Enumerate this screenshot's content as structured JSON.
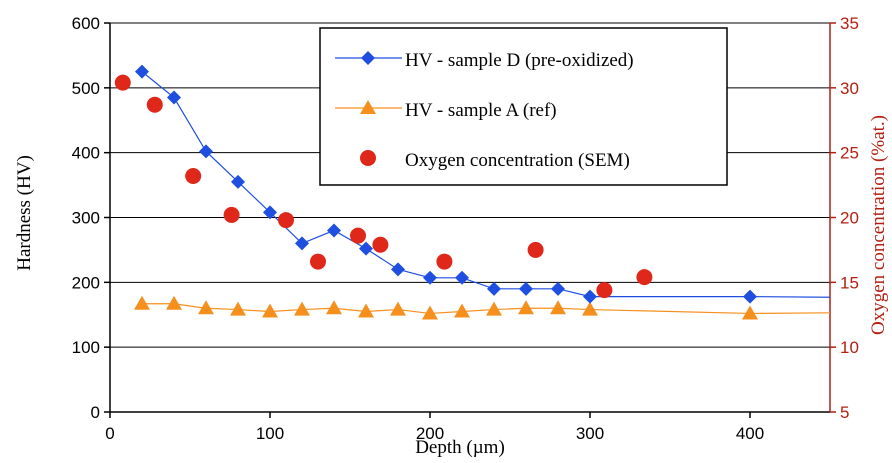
{
  "chart_data": {
    "type": "line",
    "xlabel": "Depth (µm)",
    "ylabel": "Hardness (HV)",
    "y2label": "Oxygen concentration (%at.)",
    "xlim": [
      0,
      450
    ],
    "ylim": [
      0,
      600
    ],
    "y2lim": [
      5,
      35
    ],
    "x_ticks": [
      0,
      100,
      200,
      300,
      400
    ],
    "y_ticks": [
      0,
      100,
      200,
      300,
      400,
      500,
      600
    ],
    "y2_ticks": [
      5,
      10,
      15,
      20,
      25,
      30,
      35
    ],
    "grid": "horizontal",
    "legend_position": "top-right",
    "colors": {
      "sample_d": "#1f4fe0",
      "sample_a": "#f5901e",
      "oxygen": "#e0281a",
      "right_axis": "#b41e10"
    },
    "series": [
      {
        "name": "HV - sample D (pre-oxidized)",
        "axis": "left",
        "marker": "diamond",
        "x": [
          20,
          40,
          60,
          80,
          100,
          120,
          140,
          160,
          180,
          200,
          220,
          240,
          260,
          280,
          300,
          400,
          450
        ],
        "y": [
          525,
          485,
          402,
          355,
          308,
          260,
          280,
          252,
          220,
          207,
          207,
          190,
          190,
          190,
          178,
          178,
          177
        ],
        "markers": [
          true,
          true,
          true,
          true,
          true,
          true,
          true,
          true,
          true,
          true,
          true,
          true,
          true,
          true,
          true,
          true,
          false
        ]
      },
      {
        "name": "HV - sample A (ref)",
        "axis": "left",
        "marker": "triangle",
        "x": [
          20,
          40,
          60,
          80,
          100,
          120,
          140,
          160,
          180,
          200,
          220,
          240,
          260,
          280,
          300,
          400,
          450
        ],
        "y": [
          167,
          167,
          160,
          158,
          155,
          158,
          160,
          155,
          158,
          152,
          155,
          158,
          160,
          160,
          158,
          152,
          153
        ],
        "markers": [
          true,
          true,
          true,
          true,
          true,
          true,
          true,
          true,
          true,
          true,
          true,
          true,
          true,
          true,
          true,
          true,
          false
        ]
      },
      {
        "name": "Oxygen concentration (SEM)",
        "axis": "right",
        "marker": "circle",
        "x": [
          8,
          28,
          52,
          76,
          110,
          130,
          155,
          169,
          209,
          266,
          309,
          334
        ],
        "y": [
          30.4,
          28.7,
          23.2,
          20.2,
          19.8,
          16.6,
          18.6,
          17.9,
          16.6,
          17.5,
          14.4,
          15.4
        ]
      }
    ]
  }
}
